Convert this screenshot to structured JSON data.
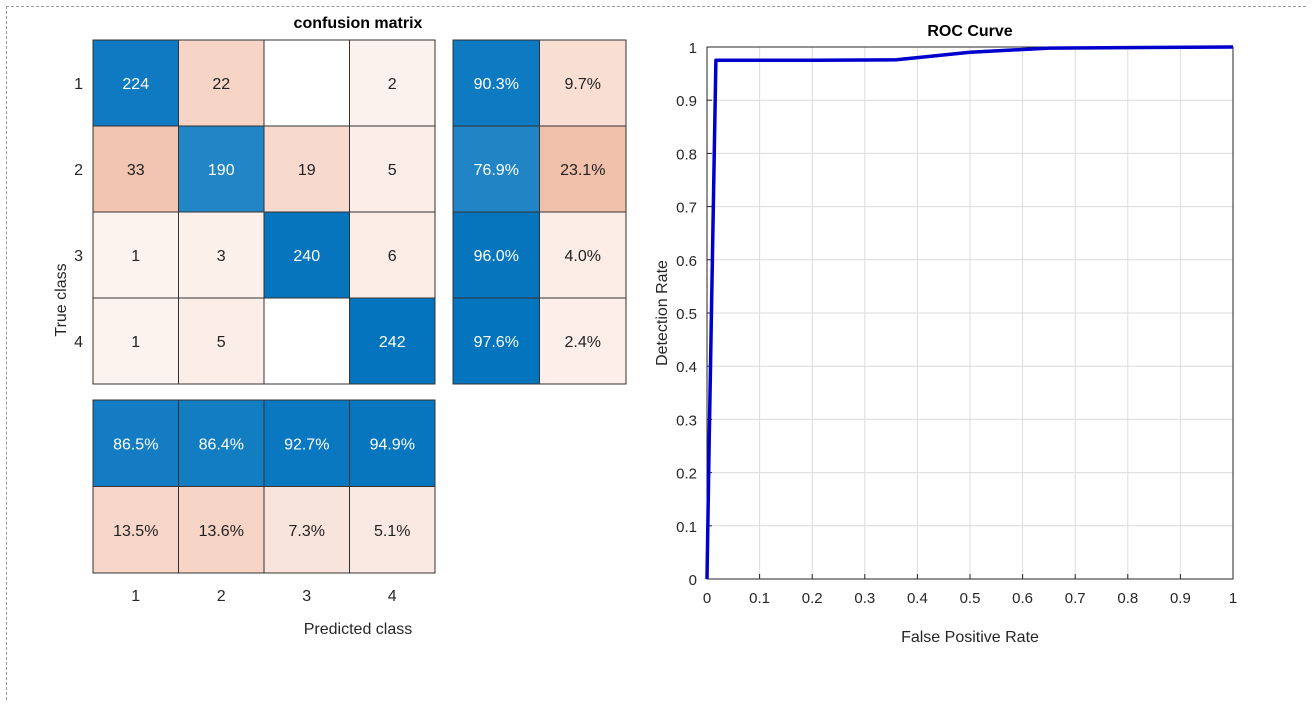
{
  "chart_data": [
    {
      "type": "heatmap",
      "title": "confusion matrix",
      "xlabel": "Predicted class",
      "ylabel": "True class",
      "row_labels": [
        "1",
        "2",
        "3",
        "4"
      ],
      "col_labels": [
        "1",
        "2",
        "3",
        "4"
      ],
      "matrix": [
        [
          224,
          22,
          "",
          2
        ],
        [
          33,
          190,
          19,
          5
        ],
        [
          1,
          3,
          240,
          6
        ],
        [
          1,
          5,
          "",
          242
        ]
      ],
      "row_summary": [
        [
          "90.3%",
          "9.7%"
        ],
        [
          "76.9%",
          "23.1%"
        ],
        [
          "96.0%",
          "4.0%"
        ],
        [
          "97.6%",
          "2.4%"
        ]
      ],
      "column_summary": [
        [
          "86.5%",
          "86.4%",
          "92.7%",
          "94.9%"
        ],
        [
          "13.5%",
          "13.6%",
          "7.3%",
          "5.1%"
        ]
      ],
      "colors": {
        "diagonal": "#0072bd",
        "off_diagonal": "#d95319",
        "empty": "#ffffff",
        "grid": "#333333"
      }
    },
    {
      "type": "line",
      "title": "ROC Curve",
      "xlabel": "False Positive Rate",
      "ylabel": "Detection Rate",
      "xlim": [
        0,
        1
      ],
      "ylim": [
        0,
        1
      ],
      "xticks": [
        "0",
        "0.1",
        "0.2",
        "0.3",
        "0.4",
        "0.5",
        "0.6",
        "0.7",
        "0.8",
        "0.9",
        "1"
      ],
      "yticks": [
        "0",
        "0.1",
        "0.2",
        "0.3",
        "0.4",
        "0.5",
        "0.6",
        "0.7",
        "0.8",
        "0.9",
        "1"
      ],
      "grid": true,
      "series": [
        {
          "color": "#0000cd",
          "x": [
            0,
            0.004,
            0.017,
            0.2,
            0.36,
            0.4,
            0.5,
            0.65,
            1.0
          ],
          "y": [
            0,
            0.25,
            0.975,
            0.975,
            0.976,
            0.98,
            0.99,
            0.998,
            1.0
          ]
        }
      ]
    }
  ]
}
